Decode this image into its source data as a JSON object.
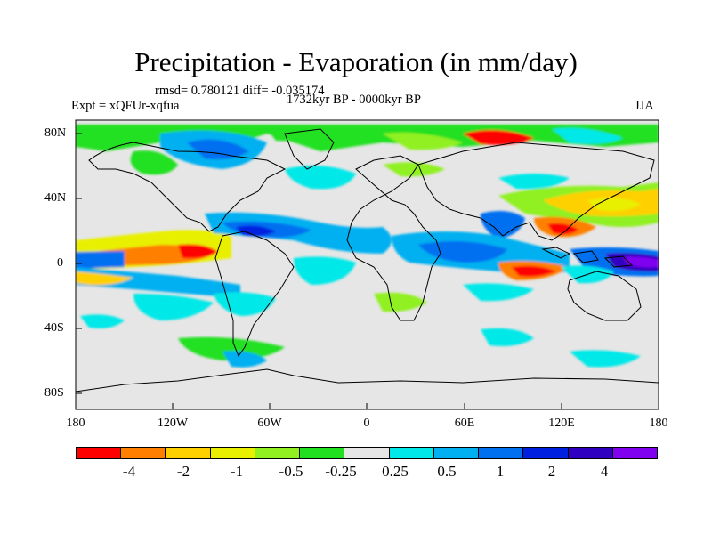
{
  "title": "Precipitation - Evaporation (in mm/day)",
  "stats": "rmsd= 0.780121 diff= -0.035174",
  "period": "1732kyr BP - 0000kyr BP",
  "experiment": "Expt = xQFUr-xqfua",
  "season": "JJA",
  "x_axis_labels": [
    "180",
    "120W",
    "60W",
    "0",
    "60E",
    "120E",
    "180"
  ],
  "y_axis_labels": [
    "80N",
    "40N",
    "0",
    "40S",
    "80S"
  ],
  "colorbar": {
    "colors": [
      "#ff0000",
      "#ff8000",
      "#ffd000",
      "#e8f000",
      "#90f020",
      "#20e020",
      "#e6e6e6",
      "#00e8e8",
      "#00b0f0",
      "#0070f0",
      "#0020e0",
      "#3000c0",
      "#8000f0"
    ],
    "labels": [
      "-4",
      "-2",
      "-1",
      "-0.5",
      "-0.25",
      "0.25",
      "0.5",
      "1",
      "2",
      "4"
    ]
  }
}
